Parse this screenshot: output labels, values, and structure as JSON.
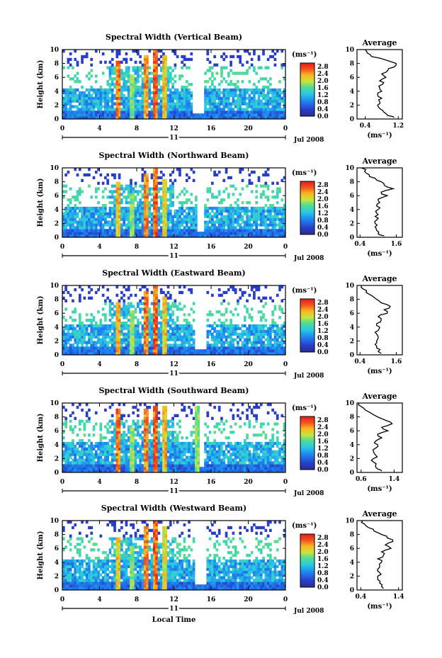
{
  "figure": {
    "xlabel_bottom": "Local Time",
    "date_label": "Jul 2008",
    "day_label": "11"
  },
  "chart_data": [
    {
      "type": "heatmap",
      "title": "Spectral Width (Vertical Beam)",
      "xlabel": "",
      "ylabel": "Height (km)",
      "xlim": [
        0,
        24
      ],
      "ylim": [
        0,
        10
      ],
      "xticks": [
        "0",
        "4",
        "8",
        "12",
        "16",
        "20",
        "0"
      ],
      "yticks": [
        "0",
        "2",
        "4",
        "6",
        "8",
        "10"
      ],
      "colorbar": {
        "label": "(ms⁻¹)",
        "ticks": [
          "0.0",
          "0.4",
          "0.8",
          "1.2",
          "1.6",
          "2.0",
          "2.4",
          "2.8"
        ],
        "range": [
          0,
          3.0
        ]
      },
      "gap": [
        14.0,
        15.3
      ],
      "convective_columns": [
        [
          6.0,
          8.5,
          2.9
        ],
        [
          7.5,
          6.5,
          2.0
        ],
        [
          9.0,
          9.0,
          2.8
        ],
        [
          10.0,
          9.8,
          3.0
        ],
        [
          11.0,
          9.0,
          2.5
        ]
      ],
      "average_profile": {
        "title": "Average",
        "xlabel": "(ms⁻¹)",
        "xticks": [
          "0.4",
          "1.2"
        ],
        "xlim": [
          0.2,
          1.3
        ],
        "height_km": [
          0.2,
          0.5,
          1,
          1.5,
          2,
          2.5,
          3,
          3.5,
          4,
          4.5,
          5,
          5.5,
          6,
          6.5,
          7,
          7.5,
          8,
          8.5,
          9,
          9.5,
          10
        ],
        "values": [
          1.1,
          0.95,
          0.85,
          0.75,
          0.7,
          0.75,
          0.8,
          0.7,
          0.8,
          0.75,
          0.82,
          0.75,
          0.9,
          0.8,
          0.95,
          1.1,
          1.15,
          0.9,
          0.55,
          0.45,
          0.4
        ]
      }
    },
    {
      "type": "heatmap",
      "title": "Spectral Width (Northward Beam)",
      "xlabel": "",
      "ylabel": "Height (km)",
      "xlim": [
        0,
        24
      ],
      "ylim": [
        0,
        10
      ],
      "xticks": [
        "0",
        "4",
        "8",
        "12",
        "16",
        "20",
        "0"
      ],
      "yticks": [
        "0",
        "2",
        "4",
        "6",
        "8",
        "10"
      ],
      "colorbar": {
        "label": "(ms⁻¹)",
        "ticks": [
          "0.0",
          "0.4",
          "0.8",
          "1.2",
          "1.6",
          "2.0",
          "2.4",
          "2.8"
        ],
        "range": [
          0,
          3.0
        ]
      },
      "gap": [
        14.5,
        15.3
      ],
      "convective_columns": [
        [
          6.0,
          8.0,
          2.6
        ],
        [
          7.5,
          6.5,
          2.0
        ],
        [
          9.0,
          9.0,
          2.8
        ],
        [
          10.0,
          9.8,
          3.0
        ],
        [
          11.0,
          8.5,
          2.4
        ]
      ],
      "average_profile": {
        "title": "Average",
        "xlabel": "(ms⁻¹)",
        "xticks": [
          "0.4",
          "1.6"
        ],
        "xlim": [
          0.3,
          1.8
        ],
        "height_km": [
          0.2,
          0.5,
          1,
          1.5,
          2,
          2.5,
          3,
          3.5,
          4,
          4.5,
          5,
          5.5,
          6,
          6.5,
          7,
          7.5,
          8,
          8.5,
          9,
          9.5,
          10
        ],
        "values": [
          1.2,
          1.0,
          0.95,
          0.9,
          0.9,
          0.95,
          0.9,
          0.95,
          1.0,
          0.95,
          1.05,
          1.0,
          1.3,
          1.1,
          1.5,
          1.2,
          1.1,
          0.9,
          0.7,
          0.55,
          0.45
        ]
      }
    },
    {
      "type": "heatmap",
      "title": "Spectral Width (Eastward Beam)",
      "xlabel": "",
      "ylabel": "Height (km)",
      "xlim": [
        0,
        24
      ],
      "ylim": [
        0,
        10
      ],
      "xticks": [
        "0",
        "4",
        "8",
        "12",
        "16",
        "20",
        "0"
      ],
      "yticks": [
        "0",
        "2",
        "4",
        "6",
        "8",
        "10"
      ],
      "colorbar": {
        "label": "(ms⁻¹)",
        "ticks": [
          "0.0",
          "0.4",
          "0.8",
          "1.2",
          "1.6",
          "2.0",
          "2.4",
          "2.8"
        ],
        "range": [
          0,
          3.0
        ]
      },
      "gap": [
        14.2,
        15.4
      ],
      "convective_columns": [
        [
          6.0,
          7.5,
          2.6
        ],
        [
          7.5,
          6.5,
          2.1
        ],
        [
          9.0,
          9.0,
          2.9
        ],
        [
          10.0,
          9.8,
          3.0
        ],
        [
          11.0,
          8.5,
          2.5
        ]
      ],
      "average_profile": {
        "title": "Average",
        "xlabel": "(ms⁻¹)",
        "xticks": [
          "0.4",
          "1.6"
        ],
        "xlim": [
          0.3,
          1.8
        ],
        "height_km": [
          0.2,
          0.5,
          1,
          1.5,
          2,
          2.5,
          3,
          3.5,
          4,
          4.5,
          5,
          5.5,
          6,
          6.5,
          7,
          7.5,
          8,
          8.5,
          9,
          9.5,
          10
        ],
        "values": [
          1.1,
          1.0,
          0.95,
          0.9,
          0.95,
          1.0,
          0.95,
          1.0,
          1.05,
          0.95,
          1.1,
          1.0,
          1.3,
          1.2,
          1.4,
          1.1,
          0.95,
          0.8,
          0.6,
          0.5,
          0.45
        ]
      }
    },
    {
      "type": "heatmap",
      "title": "Spectral Width (Southward Beam)",
      "xlabel": "",
      "ylabel": "Height (km)",
      "xlim": [
        0,
        24
      ],
      "ylim": [
        0,
        10
      ],
      "xticks": [
        "0",
        "4",
        "8",
        "12",
        "16",
        "20",
        "0"
      ],
      "yticks": [
        "0",
        "2",
        "4",
        "6",
        "8",
        "10"
      ],
      "colorbar": {
        "label": "(ms⁻¹)",
        "ticks": [
          "0.0",
          "0.4",
          "0.8",
          "1.2",
          "1.6",
          "2.0",
          "2.4",
          "2.8"
        ],
        "range": [
          0,
          3.0
        ]
      },
      "gap": [
        14.8,
        15.3
      ],
      "convective_columns": [
        [
          6.0,
          9.0,
          2.9
        ],
        [
          7.5,
          6.5,
          2.1
        ],
        [
          9.0,
          9.0,
          2.9
        ],
        [
          10.0,
          9.5,
          3.0
        ],
        [
          11.0,
          9.5,
          2.6
        ],
        [
          14.5,
          9.5,
          2.0
        ]
      ],
      "average_profile": {
        "title": "Average",
        "xlabel": "(ms⁻¹)",
        "xticks": [
          "0.6",
          "1.4"
        ],
        "xlim": [
          0.5,
          1.6
        ],
        "height_km": [
          0.2,
          0.5,
          1,
          1.5,
          2,
          2.5,
          3,
          3.5,
          4,
          4.5,
          5,
          5.5,
          6,
          6.5,
          7,
          7.5,
          8,
          8.5,
          9,
          9.5,
          10
        ],
        "values": [
          1.1,
          1.0,
          0.95,
          0.9,
          0.9,
          0.95,
          0.9,
          0.95,
          1.0,
          0.95,
          1.1,
          1.0,
          1.25,
          1.1,
          1.35,
          1.2,
          1.0,
          0.85,
          0.7,
          0.6,
          0.55
        ]
      }
    },
    {
      "type": "heatmap",
      "title": "Spectral Width (Westward Beam)",
      "xlabel": "",
      "ylabel": "Height (km)",
      "xlim": [
        0,
        24
      ],
      "ylim": [
        0,
        10
      ],
      "xticks": [
        "0",
        "4",
        "8",
        "12",
        "16",
        "20",
        "0"
      ],
      "yticks": [
        "0",
        "2",
        "4",
        "6",
        "8",
        "10"
      ],
      "colorbar": {
        "label": "(ms⁻¹)",
        "ticks": [
          "0.0",
          "0.4",
          "0.8",
          "1.2",
          "1.6",
          "2.0",
          "2.4",
          "2.8"
        ],
        "range": [
          0,
          3.0
        ]
      },
      "gap": [
        14.3,
        15.5
      ],
      "convective_columns": [
        [
          6.0,
          7.5,
          2.5
        ],
        [
          7.5,
          6.5,
          2.0
        ],
        [
          9.0,
          9.0,
          2.8
        ],
        [
          10.0,
          9.8,
          3.0
        ],
        [
          11.0,
          9.0,
          2.4
        ]
      ],
      "average_profile": {
        "title": "Average",
        "xlabel": "(ms⁻¹)",
        "xticks": [
          "0.4",
          "1.4"
        ],
        "xlim": [
          0.3,
          1.5
        ],
        "height_km": [
          0.2,
          0.5,
          1,
          1.5,
          2,
          2.5,
          3,
          3.5,
          4,
          4.5,
          5,
          5.5,
          6,
          6.5,
          7,
          7.5,
          8,
          8.5,
          9,
          9.5,
          10
        ],
        "values": [
          1.0,
          0.95,
          0.9,
          0.85,
          0.85,
          0.9,
          0.85,
          0.9,
          0.95,
          0.85,
          1.0,
          0.95,
          1.2,
          1.05,
          1.25,
          1.1,
          0.95,
          0.75,
          0.6,
          0.5,
          0.45
        ]
      }
    }
  ]
}
